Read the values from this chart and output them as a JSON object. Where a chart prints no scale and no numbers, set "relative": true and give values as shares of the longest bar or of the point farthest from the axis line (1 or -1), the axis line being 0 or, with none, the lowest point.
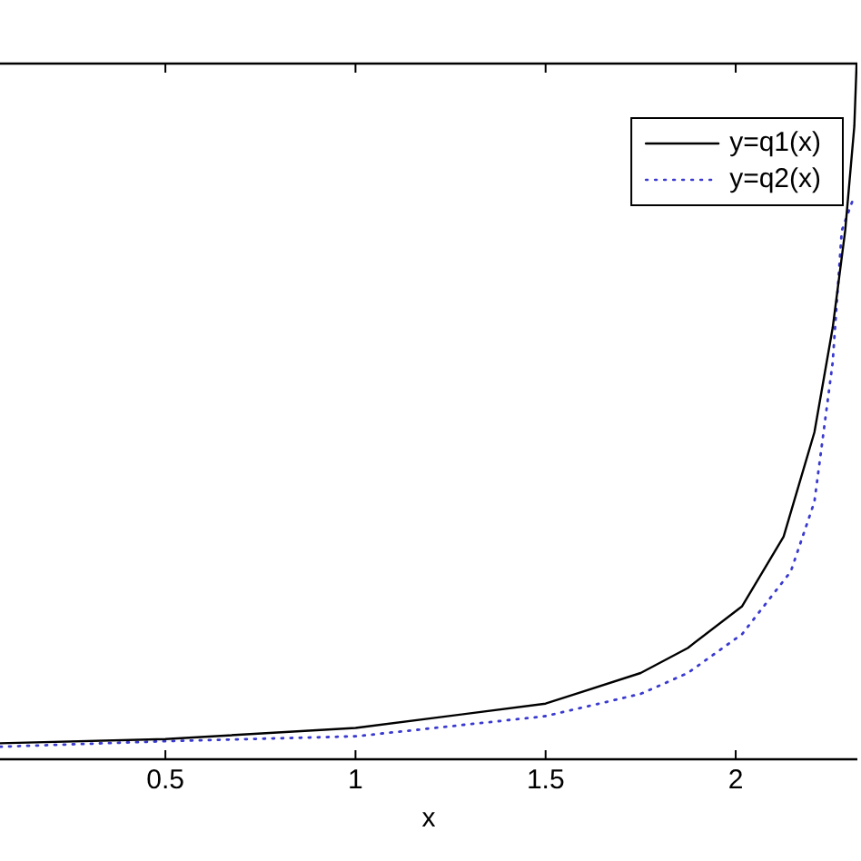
{
  "chart_data": {
    "type": "line",
    "xlabel": "x",
    "relative": true,
    "xlim": [
      0.065,
      2.32
    ],
    "xticks": [
      0.5,
      1,
      1.5,
      2
    ],
    "tick_labels": "x",
    "legend": "top right",
    "grid": false,
    "marker": "none",
    "series": [
      {
        "name": "y=q1(x)",
        "color": "#000000",
        "line_style": "solid",
        "x": [
          0.065,
          0.5,
          1,
          1.5,
          1.75,
          1.874,
          2.017,
          2.126,
          2.207,
          2.255,
          2.288,
          2.312,
          2.318
        ],
        "values": [
          0.023,
          0.029,
          0.045,
          0.08,
          0.124,
          0.16,
          0.22,
          0.32,
          0.47,
          0.62,
          0.76,
          0.91,
          1
        ]
      },
      {
        "name": "y=q2(x)",
        "color": "#3a3ad0",
        "line_style": "dotted",
        "x": [
          0.065,
          0.5,
          1,
          1.5,
          1.75,
          1.874,
          2.017,
          2.145,
          2.207,
          2.255,
          2.279,
          2.312
        ],
        "values": [
          0.018,
          0.026,
          0.033,
          0.062,
          0.094,
          0.124,
          0.18,
          0.27,
          0.37,
          0.57,
          0.76,
          0.81
        ]
      }
    ]
  }
}
